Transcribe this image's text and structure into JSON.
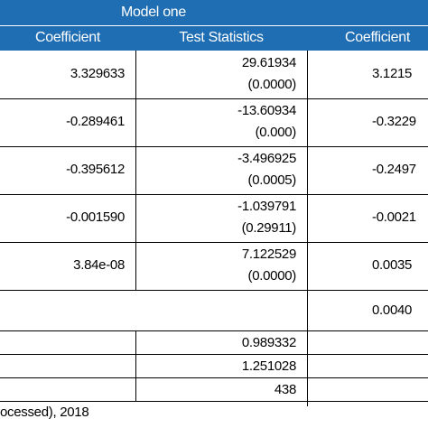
{
  "header": {
    "group": "Model one",
    "columns": [
      "Coefficient",
      "Test Statistics",
      "Coefficient"
    ]
  },
  "rows": [
    {
      "coef": "3.329633",
      "stat": "29.61934",
      "p": "(0.0000)",
      "coef2": "3.1215"
    },
    {
      "coef": "-0.289461",
      "stat": "-13.60934",
      "p": "(0.000)",
      "coef2": "-0.3229"
    },
    {
      "coef": "-0.395612",
      "stat": "-3.496925",
      "p": "(0.0005)",
      "coef2": "-0.2497"
    },
    {
      "coef": "-0.001590",
      "stat": "-1.039791",
      "p": "(0.29911)",
      "coef2": "-0.0021"
    },
    {
      "coef": "3.84e-08",
      "stat": "7.122529",
      "p": "(0.0000)",
      "coef2": "0.0035"
    }
  ],
  "extra_row": "0.0040",
  "stats": [
    "0.989332",
    "1.251028",
    "438"
  ],
  "source": "ocessed), 2018"
}
